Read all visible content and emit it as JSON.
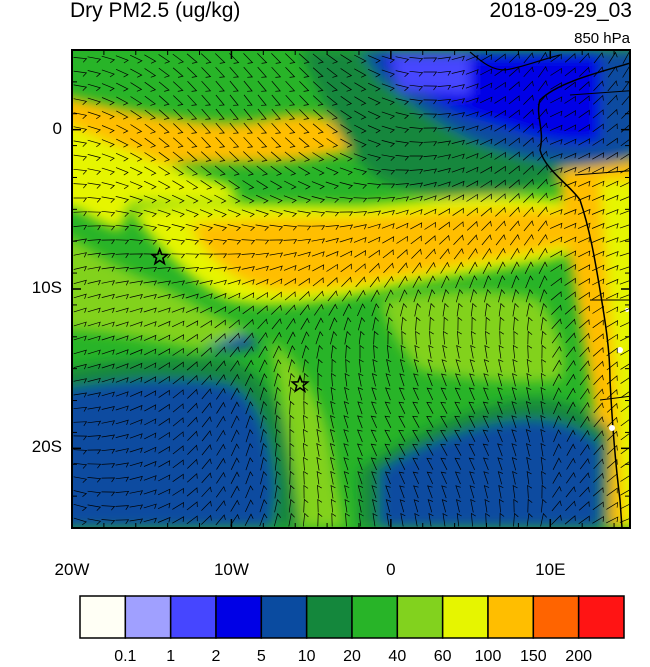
{
  "header": {
    "title": "Dry PM2.5 (ug/kg)",
    "datetime": "2018-09-29_03",
    "level": "850 hPa"
  },
  "axes": {
    "x_ticks": [
      {
        "label": "20W",
        "lon": -20
      },
      {
        "label": "10W",
        "lon": -10
      },
      {
        "label": "0",
        "lon": 0
      },
      {
        "label": "10E",
        "lon": 10
      }
    ],
    "y_ticks": [
      {
        "label": "0",
        "lat": 0
      },
      {
        "label": "10S",
        "lat": -10
      },
      {
        "label": "20S",
        "lat": -20
      }
    ],
    "lon_range": [
      -20,
      15
    ],
    "lat_range": [
      -25,
      5
    ]
  },
  "legend": {
    "colors": [
      "#fffff5",
      "#a0a0ff",
      "#4646ff",
      "#0000e6",
      "#0a4ba0",
      "#14873c",
      "#28b428",
      "#82d21e",
      "#e6f500",
      "#ffbe00",
      "#ff6400",
      "#ff1414"
    ],
    "labels": [
      "0.1",
      "1",
      "2",
      "5",
      "10",
      "20",
      "40",
      "60",
      "100",
      "150",
      "200"
    ]
  },
  "markers": [
    {
      "name": "star-west",
      "lon": -14.5,
      "lat": -8
    },
    {
      "name": "star-south",
      "lon": -5.7,
      "lat": -16
    }
  ]
}
